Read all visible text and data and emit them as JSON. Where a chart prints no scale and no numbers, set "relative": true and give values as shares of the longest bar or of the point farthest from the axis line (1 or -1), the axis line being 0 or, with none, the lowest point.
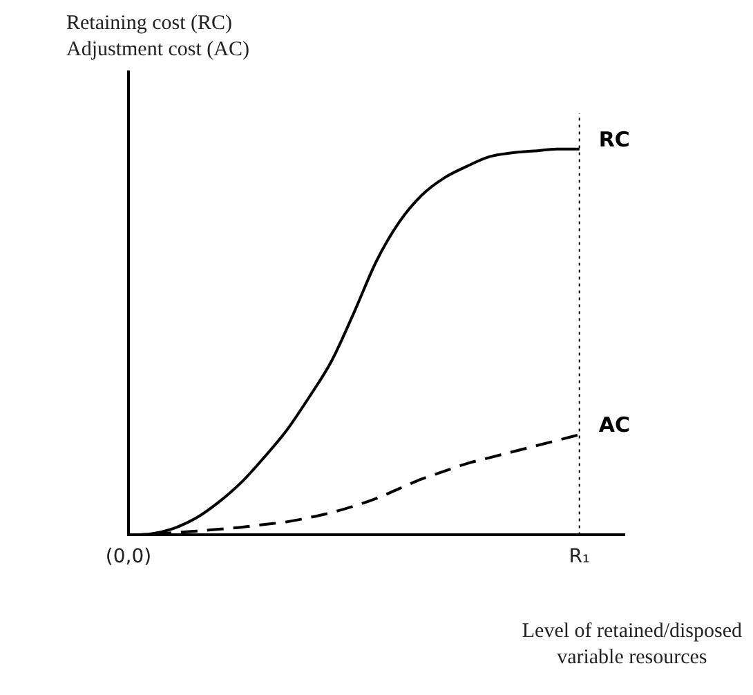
{
  "chart_data": {
    "type": "line",
    "relative": true,
    "ylabel": "Retaining cost (RC)\nAdjustment cost (AC)",
    "xlabel": "Level of retained/disposed\nvariable resources",
    "categories": [
      "(0,0)",
      null,
      null,
      null,
      null,
      null,
      null,
      null,
      null,
      null,
      null,
      null,
      null,
      null,
      null,
      null,
      null,
      null,
      null,
      null,
      "R₁",
      null,
      null
    ],
    "series": [
      {
        "name": "RC",
        "color": "#000000",
        "line_style": "solid",
        "values": [
          0,
          0.003,
          0.017,
          0.044,
          0.085,
          0.136,
          0.2,
          0.27,
          0.356,
          0.45,
          0.576,
          0.71,
          0.81,
          0.88,
          0.925,
          0.955,
          0.98,
          0.99,
          0.995,
          1,
          1,
          null,
          null
        ]
      },
      {
        "name": "AC",
        "color": "#000000",
        "line_style": "dashed",
        "values": [
          0,
          0.002,
          0.006,
          0.01,
          0.015,
          0.02,
          0.027,
          0.034,
          0.045,
          0.058,
          0.075,
          0.095,
          0.12,
          0.145,
          0.165,
          0.185,
          0.2,
          0.215,
          0.23,
          0.245,
          0.26,
          null,
          null
        ]
      }
    ],
    "ref_lines": [
      {
        "axis": "x",
        "value": "R₁",
        "line_style": "dotted",
        "color": "#000000"
      }
    ],
    "marker": "none",
    "grid": false,
    "legend": false
  }
}
